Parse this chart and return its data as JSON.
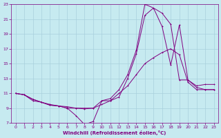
{
  "xlabel": "Windchill (Refroidissement éolien,°C)",
  "bg_color": "#c6eaf0",
  "grid_color": "#a8d0dc",
  "line_color": "#800080",
  "xlim": [
    -0.5,
    23.5
  ],
  "ylim": [
    7,
    23
  ],
  "xticks": [
    0,
    1,
    2,
    3,
    4,
    5,
    6,
    7,
    8,
    9,
    10,
    11,
    12,
    13,
    14,
    15,
    16,
    17,
    18,
    19,
    20,
    21,
    22,
    23
  ],
  "yticks": [
    7,
    9,
    11,
    13,
    15,
    17,
    19,
    21,
    23
  ],
  "line1_x": [
    0,
    1,
    2,
    3,
    4,
    5,
    6,
    7,
    8,
    9,
    10,
    11,
    12,
    13,
    14,
    15,
    16,
    17,
    18,
    19,
    20,
    21,
    22,
    23
  ],
  "line1_y": [
    11,
    10.8,
    10.2,
    9.8,
    9.4,
    9.3,
    9.0,
    8.0,
    6.8,
    7.2,
    10.0,
    10.0,
    10.5,
    13.0,
    16.3,
    21.5,
    22.5,
    21.8,
    20.3,
    12.8,
    12.8,
    12.0,
    12.2,
    12.2
  ],
  "line2_x": [
    0,
    1,
    2,
    3,
    4,
    5,
    6,
    7,
    8,
    9,
    10,
    11,
    12,
    13,
    14,
    15,
    16,
    17,
    18,
    19,
    20,
    21,
    22,
    23
  ],
  "line2_y": [
    11,
    10.8,
    10.2,
    9.8,
    9.4,
    9.3,
    9.0,
    9.0,
    9.0,
    9.0,
    10.0,
    10.3,
    11.5,
    13.5,
    16.8,
    23.0,
    22.5,
    20.0,
    14.8,
    20.2,
    12.8,
    11.8,
    11.5,
    11.5
  ],
  "line3_x": [
    0,
    1,
    2,
    3,
    4,
    5,
    6,
    7,
    8,
    9,
    10,
    11,
    12,
    13,
    14,
    15,
    16,
    17,
    18,
    19,
    20,
    21,
    22,
    23
  ],
  "line3_y": [
    11,
    10.8,
    10.0,
    9.8,
    9.5,
    9.3,
    9.2,
    9.0,
    8.9,
    9.0,
    9.5,
    10.0,
    11.0,
    12.0,
    13.5,
    15.0,
    15.8,
    16.5,
    17.0,
    16.2,
    12.5,
    11.5,
    11.5,
    11.5
  ]
}
